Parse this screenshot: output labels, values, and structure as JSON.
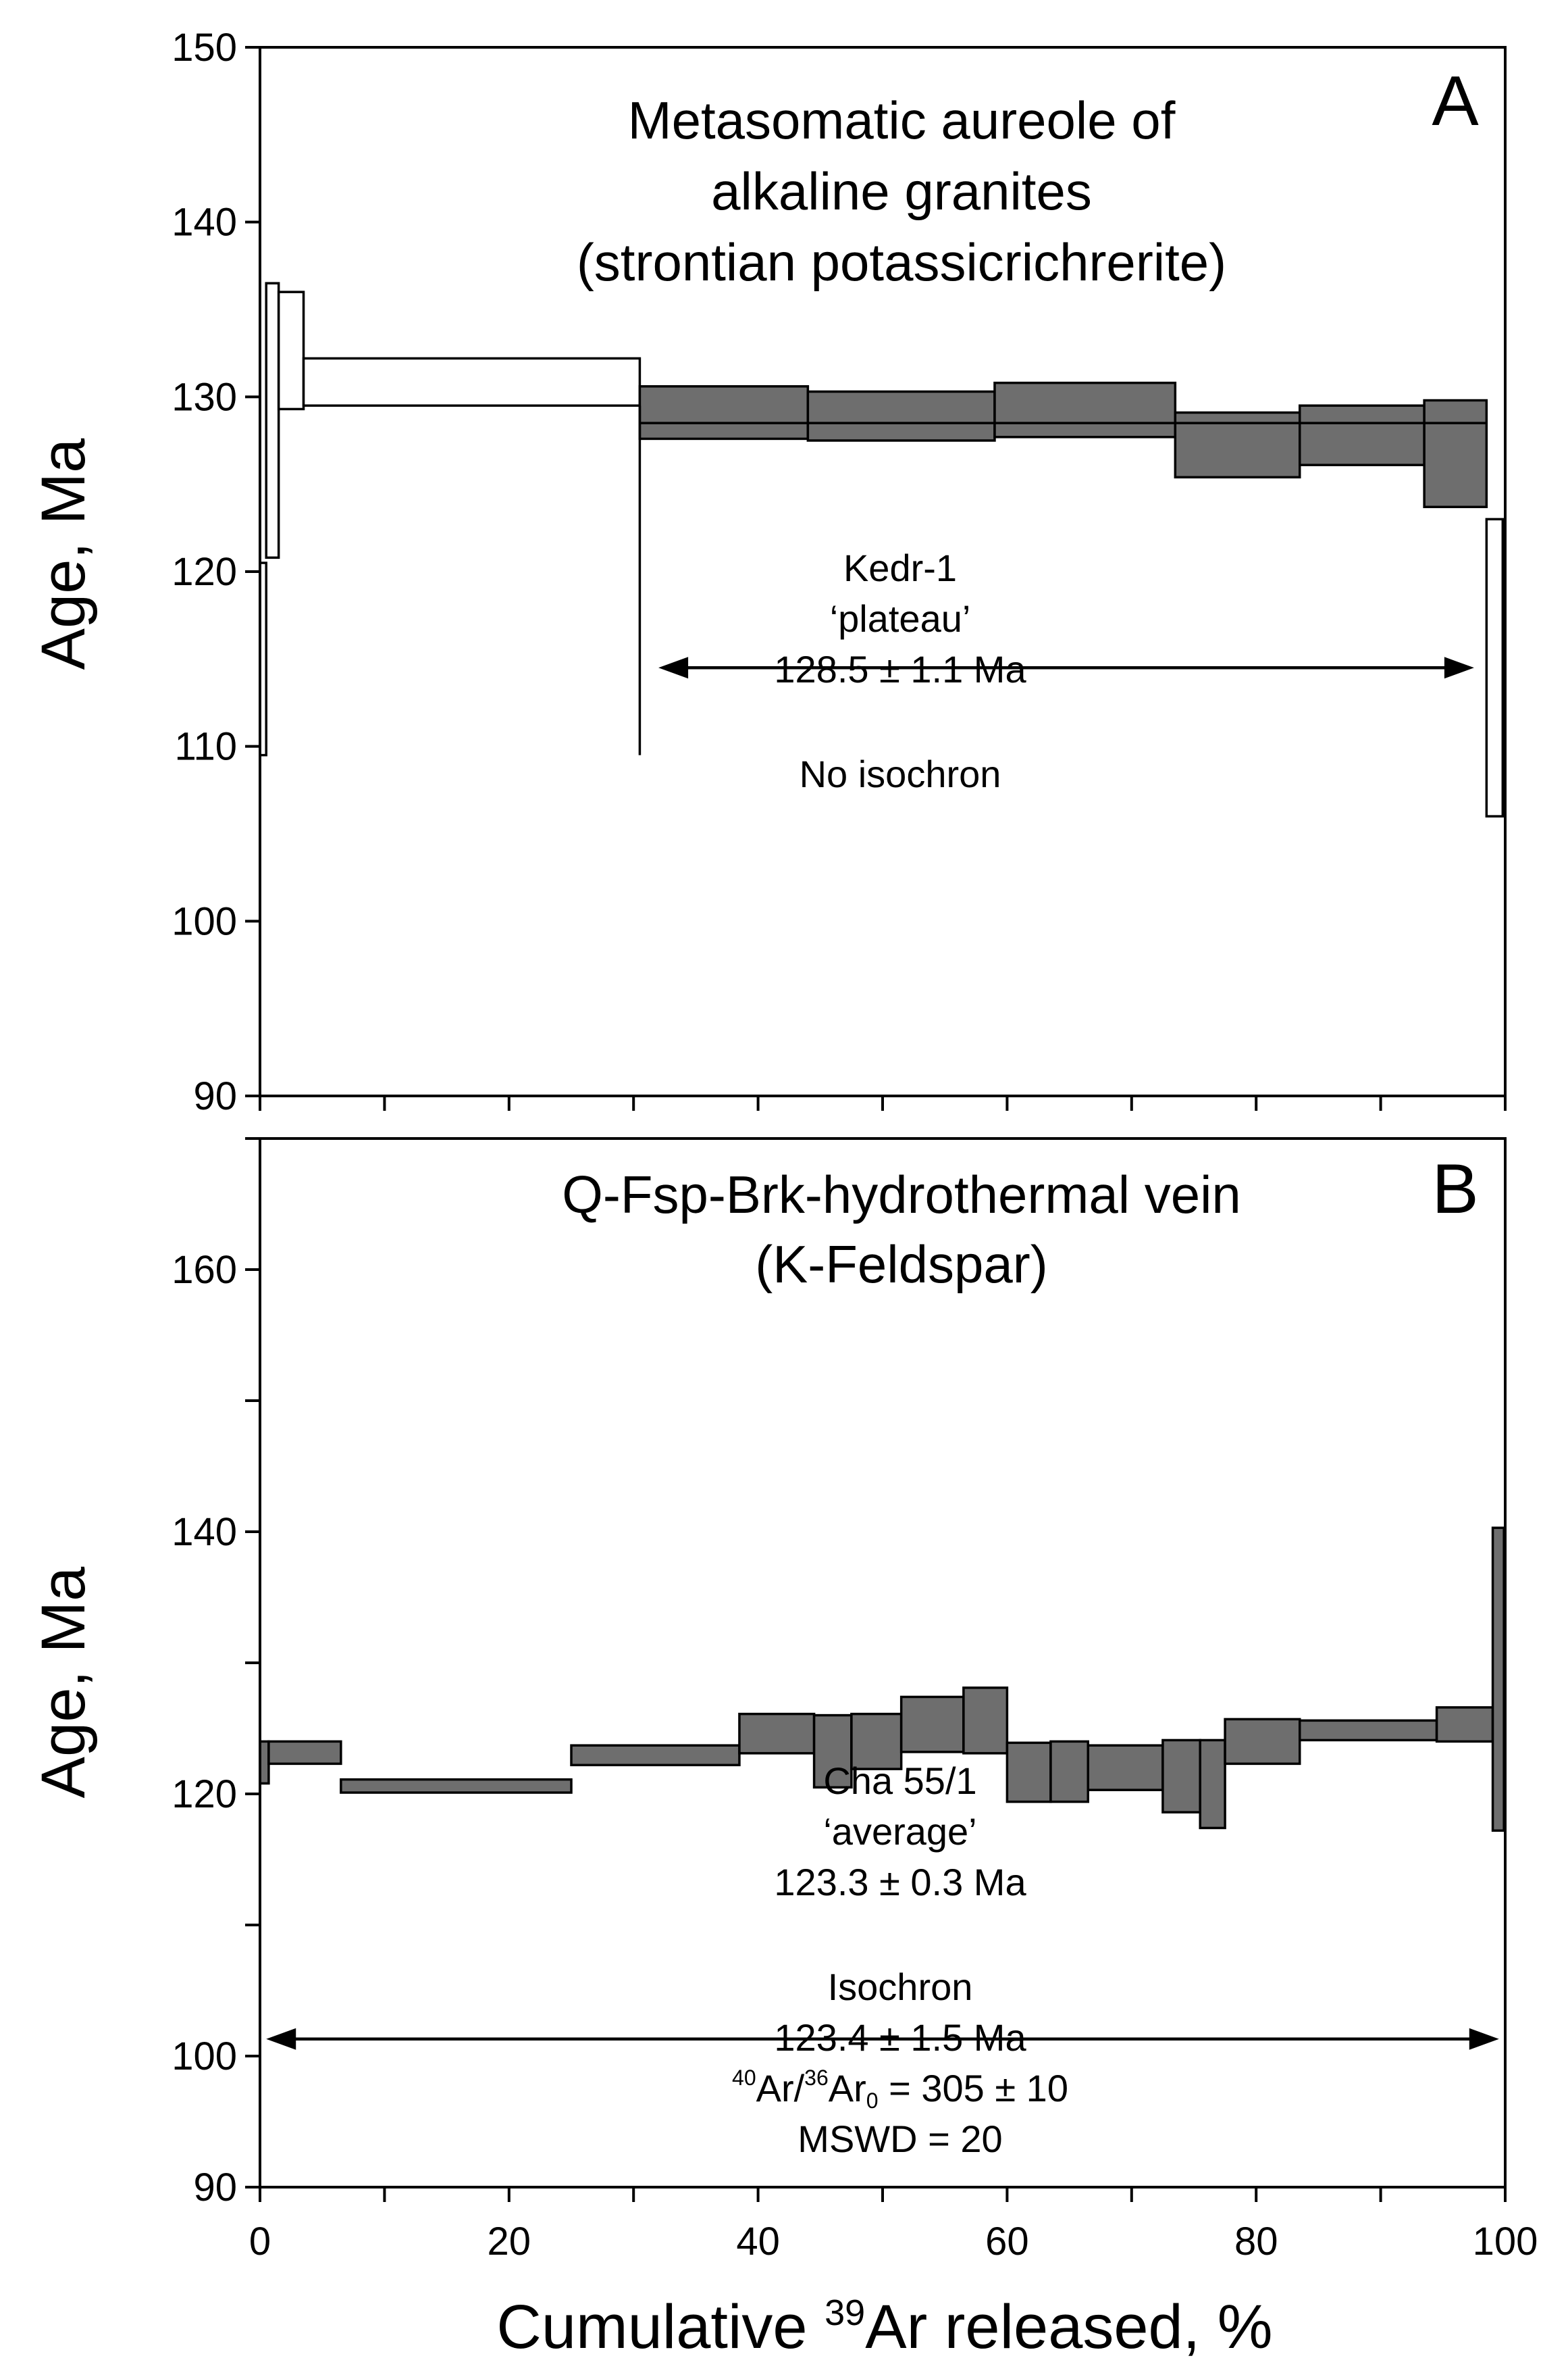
{
  "colors": {
    "filled_step": "#6e6e6e",
    "open_step": "#ffffff",
    "ink": "#000000"
  },
  "chart_data": [
    {
      "type": "step-spectrum",
      "panel_label": "A",
      "title_lines": [
        "Metasomatic aureole of",
        "alkaline granites",
        "(strontian potassicrichrerite)"
      ],
      "xlabel": {
        "prefix": "Cumulative ",
        "superscript": "39",
        "suffix": "Ar released, %"
      },
      "ylabel": "Age, Ma",
      "xlim": [
        0,
        100
      ],
      "ylim": [
        90,
        150
      ],
      "xticks": [
        0,
        10,
        20,
        30,
        40,
        50,
        60,
        70,
        80,
        90,
        100
      ],
      "yticks": [
        90,
        100,
        110,
        120,
        130,
        140,
        150
      ],
      "ytick_labels": [
        "90",
        "100",
        "110",
        "120",
        "130",
        "140",
        "150"
      ],
      "steps": [
        {
          "x_start": 0.0,
          "x_end": 0.5,
          "age_low": 109.5,
          "age_high": 120.5,
          "in_plateau": false
        },
        {
          "x_start": 0.5,
          "x_end": 1.5,
          "age_low": 120.8,
          "age_high": 136.5,
          "in_plateau": false
        },
        {
          "x_start": 1.5,
          "x_end": 3.5,
          "age_low": 129.3,
          "age_high": 136.0,
          "in_plateau": false
        },
        {
          "x_start": 3.5,
          "x_end": 30.5,
          "age_low": 129.5,
          "age_high": 132.2,
          "in_plateau": false
        },
        {
          "x_start": 30.5,
          "x_end": 44.0,
          "age_low": 127.6,
          "age_high": 130.6,
          "in_plateau": true
        },
        {
          "x_start": 44.0,
          "x_end": 59.0,
          "age_low": 127.5,
          "age_high": 130.3,
          "in_plateau": true
        },
        {
          "x_start": 59.0,
          "x_end": 73.5,
          "age_low": 127.7,
          "age_high": 130.8,
          "in_plateau": true
        },
        {
          "x_start": 73.5,
          "x_end": 83.5,
          "age_low": 125.4,
          "age_high": 129.1,
          "in_plateau": true
        },
        {
          "x_start": 83.5,
          "x_end": 93.5,
          "age_low": 126.1,
          "age_high": 129.5,
          "in_plateau": true
        },
        {
          "x_start": 93.5,
          "x_end": 98.5,
          "age_low": 123.7,
          "age_high": 129.8,
          "in_plateau": true
        },
        {
          "x_start": 98.5,
          "x_end": 99.8,
          "age_low": 106.0,
          "age_high": 123.0,
          "in_plateau": false
        }
      ],
      "plateau_age_line": {
        "age": 128.5,
        "x_start": 30.5,
        "x_end": 98.5
      },
      "drop_line": {
        "x": 30.5,
        "age_top": 129.5,
        "age_bottom": 109.5
      },
      "arrow": {
        "x_start": 32.0,
        "x_end": 97.5,
        "age": 114.5
      },
      "annotation_lines": [
        "Kedr-1",
        "‘plateau’",
        "128.5 ± 1.1 Ma"
      ],
      "annotation_anchor": {
        "x": 64,
        "age": 120.5
      },
      "below_arrow_text": "No isochron",
      "below_arrow_anchor": {
        "x": 64,
        "age": 110.0
      }
    },
    {
      "type": "step-spectrum",
      "panel_label": "B",
      "title_lines": [
        "Q-Fsp-Brk-hydrothermal vein",
        "(K-Feldspar)"
      ],
      "ylabel": "Age, Ma",
      "xlim": [
        0,
        100
      ],
      "ylim": [
        90,
        170
      ],
      "xticks": [
        0,
        10,
        20,
        30,
        40,
        50,
        60,
        70,
        80,
        90,
        100
      ],
      "xtick_labels": [
        "0",
        "20",
        "40",
        "60",
        "80",
        "100"
      ],
      "xtick_label_values": [
        0,
        20,
        40,
        60,
        80,
        100
      ],
      "yticks": [
        90,
        100,
        110,
        120,
        130,
        140,
        150,
        160,
        170
      ],
      "ytick_labels": [
        "90",
        "100",
        "120",
        "140",
        "160"
      ],
      "ytick_label_values": [
        90,
        100,
        120,
        140,
        160
      ],
      "steps": [
        {
          "x_start": 0.0,
          "x_end": 0.7,
          "age_low": 120.8,
          "age_high": 124.0
        },
        {
          "x_start": 0.7,
          "x_end": 6.5,
          "age_low": 122.3,
          "age_high": 124.0
        },
        {
          "x_start": 6.5,
          "x_end": 25.0,
          "age_low": 120.1,
          "age_high": 121.1
        },
        {
          "x_start": 25.0,
          "x_end": 38.5,
          "age_low": 122.2,
          "age_high": 123.7
        },
        {
          "x_start": 38.5,
          "x_end": 44.5,
          "age_low": 123.1,
          "age_high": 126.1
        },
        {
          "x_start": 44.5,
          "x_end": 47.5,
          "age_low": 120.5,
          "age_high": 126.0
        },
        {
          "x_start": 47.5,
          "x_end": 51.5,
          "age_low": 121.9,
          "age_high": 126.1
        },
        {
          "x_start": 51.5,
          "x_end": 56.5,
          "age_low": 123.2,
          "age_high": 127.4
        },
        {
          "x_start": 56.5,
          "x_end": 60.0,
          "age_low": 123.1,
          "age_high": 128.1
        },
        {
          "x_start": 60.0,
          "x_end": 63.5,
          "age_low": 119.4,
          "age_high": 123.9
        },
        {
          "x_start": 63.5,
          "x_end": 66.5,
          "age_low": 119.4,
          "age_high": 124.0
        },
        {
          "x_start": 66.5,
          "x_end": 72.5,
          "age_low": 120.3,
          "age_high": 123.7
        },
        {
          "x_start": 72.5,
          "x_end": 75.5,
          "age_low": 118.6,
          "age_high": 124.1
        },
        {
          "x_start": 75.5,
          "x_end": 77.5,
          "age_low": 117.4,
          "age_high": 124.1
        },
        {
          "x_start": 77.5,
          "x_end": 83.5,
          "age_low": 122.3,
          "age_high": 125.7
        },
        {
          "x_start": 83.5,
          "x_end": 94.5,
          "age_low": 124.1,
          "age_high": 125.6
        },
        {
          "x_start": 94.5,
          "x_end": 99.0,
          "age_low": 124.0,
          "age_high": 126.6
        },
        {
          "x_start": 99.0,
          "x_end": 99.9,
          "age_low": 117.2,
          "age_high": 140.3
        }
      ],
      "arrow": {
        "x_start": 0.5,
        "x_end": 99.5,
        "age": 101.3
      },
      "annotation_lines": [
        "Cha 55/1",
        "‘average’",
        "123.3 ± 0.3 Ma"
      ],
      "annotation_anchor": {
        "x": 51,
        "age": 114.5
      },
      "isochron": {
        "title": "Isochron",
        "age_text": "123.4 ± 1.5 Ma",
        "ratio": {
          "sup1": "40",
          "part1": "Ar/",
          "sup2": "36",
          "part2": "Ar",
          "sub": "0",
          "value": " = 305 ± 10"
        },
        "mswd": "MSWD = 20"
      },
      "isochron_anchor": {
        "x": 51,
        "age": 97.0
      }
    }
  ]
}
